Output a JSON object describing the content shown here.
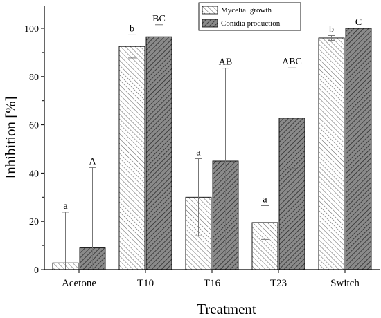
{
  "chart_data": {
    "type": "bar",
    "xlabel": "Treatment",
    "ylabel": "Inhibition [%]",
    "ylim": [
      0,
      105
    ],
    "yticks": [
      0,
      20,
      40,
      60,
      80,
      100
    ],
    "categories": [
      "Acetone",
      "T10",
      "T16",
      "T23",
      "Switch"
    ],
    "legend_position": "top-right",
    "grid": false,
    "series": [
      {
        "name": "Mycelial growth",
        "pattern": "light-hatch",
        "fill": "#ffffff",
        "hatch_color": "#666666",
        "values": [
          2.8,
          92.5,
          30.0,
          19.5,
          96.0
        ],
        "errors": [
          21.0,
          4.8,
          16.0,
          7.0,
          1.0
        ],
        "letters": [
          "a",
          "b",
          "a",
          "a",
          "b"
        ]
      },
      {
        "name": "Conidia production",
        "pattern": "dark-hatch",
        "fill": "#8a8a8a",
        "hatch_color": "#2a2a2a",
        "values": [
          9.0,
          96.5,
          45.0,
          62.8,
          100.0
        ],
        "errors": [
          33.3,
          5.0,
          38.5,
          20.8,
          0
        ],
        "letters": [
          "A",
          "BC",
          "AB",
          "ABC",
          "C"
        ]
      }
    ]
  }
}
